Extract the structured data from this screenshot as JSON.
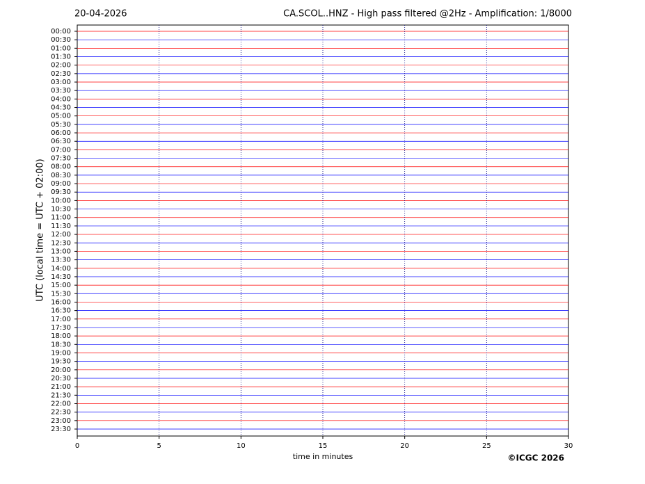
{
  "chart_data": {
    "type": "helicorder",
    "date": "20-04-2026",
    "title": "CA.SCOL..HNZ - High pass filtered @2Hz - Amplification: 1/8000",
    "ylabel": "UTC (local time = UTC + 02:00)",
    "xlabel": "time in minutes",
    "copyright": "©ICGC 2026",
    "categories": [
      "00:00",
      "00:30",
      "01:00",
      "01:30",
      "02:00",
      "02:30",
      "03:00",
      "03:30",
      "04:00",
      "04:30",
      "05:00",
      "05:30",
      "06:00",
      "06:30",
      "07:00",
      "07:30",
      "08:00",
      "08:30",
      "09:00",
      "09:30",
      "10:00",
      "10:30",
      "11:00",
      "11:30",
      "12:00",
      "12:30",
      "13:00",
      "13:30",
      "14:00",
      "14:30",
      "15:00",
      "15:30",
      "16:00",
      "16:30",
      "17:00",
      "17:30",
      "18:00",
      "18:30",
      "19:00",
      "19:30",
      "20:00",
      "20:30",
      "21:00",
      "21:30",
      "22:00",
      "22:30",
      "23:00",
      "23:30"
    ],
    "colors": [
      "#ff0000",
      "#0000ff"
    ],
    "xlim": [
      0,
      30
    ],
    "xticks": [
      0,
      5,
      10,
      15,
      20,
      25,
      30
    ],
    "grid": true
  }
}
